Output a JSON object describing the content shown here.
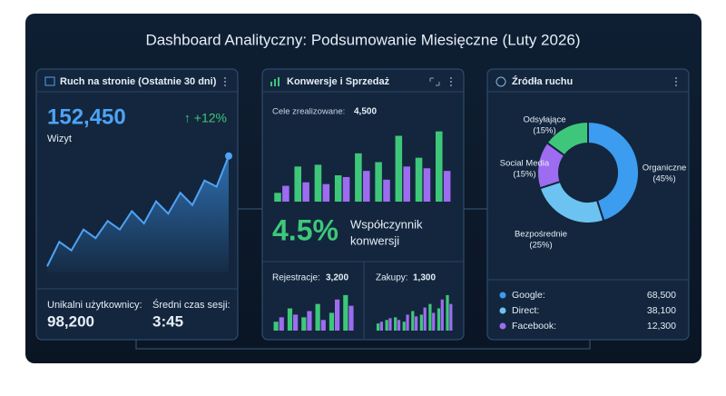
{
  "title": "Dashboard Analityczny: Podsumowanie Miesięczne (Luty 2026)",
  "cards": [
    {
      "title": "Ruch na stronie (Ostatnie 30 dni)",
      "metric": "152,450",
      "metric_label": "Wizyt",
      "change": "↑ +12%",
      "stats": [
        {
          "label": "Unikalni użytkownicy:",
          "value": "98,200"
        },
        {
          "label": "Średni czas sesji:",
          "value": "3:45"
        }
      ]
    },
    {
      "title": "Konwersje i Sprzedaż",
      "goals_label": "Cele zrealizowane:",
      "goals_value": "4,500",
      "rate": "4.5%",
      "rate_label": [
        "Współczynnik",
        "konwersji"
      ],
      "sub": [
        {
          "label": "Rejestracje:",
          "value": "3,200"
        },
        {
          "label": "Zakupy:",
          "value": "1,300"
        }
      ]
    },
    {
      "title": "Źródła ruchu",
      "legend": [
        {
          "label": "Google:",
          "value": "68,500",
          "color": "#3b9cf0"
        },
        {
          "label": "Direct:",
          "value": "38,100",
          "color": "#6cc3f2"
        },
        {
          "label": "Facebook:",
          "value": "12,300",
          "color": "#9d6cf0"
        }
      ]
    }
  ],
  "chart_data": [
    {
      "type": "line",
      "color": "#4ea3f5",
      "values": [
        5,
        25,
        18,
        35,
        28,
        42,
        35,
        50,
        40,
        58,
        48,
        65,
        55,
        75,
        70,
        95
      ],
      "ylim": [
        0,
        100
      ]
    },
    {
      "type": "bar",
      "ylim": [
        0,
        90
      ],
      "series": [
        {
          "color": "#3ec77a",
          "values": [
            10,
            40,
            42,
            30,
            55,
            45,
            75,
            50,
            80
          ]
        },
        {
          "color": "#9d6cf0",
          "values": [
            18,
            22,
            20,
            28,
            35,
            25,
            40,
            38,
            35
          ]
        }
      ]
    },
    {
      "type": "bar",
      "ylim": [
        0,
        45
      ],
      "series": [
        {
          "color": "#3ec77a",
          "values": [
            10,
            25,
            15,
            30,
            20,
            40
          ]
        },
        {
          "color": "#9d6cf0",
          "values": [
            15,
            18,
            22,
            12,
            35,
            28
          ]
        }
      ]
    },
    {
      "type": "bar",
      "ylim": [
        0,
        45
      ],
      "series": [
        {
          "color": "#3ec77a",
          "values": [
            8,
            12,
            15,
            10,
            22,
            18,
            30,
            25,
            40
          ]
        },
        {
          "color": "#9d6cf0",
          "values": [
            10,
            14,
            12,
            18,
            16,
            26,
            20,
            35,
            30
          ]
        }
      ]
    },
    {
      "type": "pie",
      "categories": [
        "Organiczne",
        "Bezpośrednie",
        "Social Media",
        "Odsyłające"
      ],
      "values": [
        45,
        25,
        15,
        15
      ],
      "value_labels": [
        "(45%)",
        "(25%)",
        "(15%)",
        "(15%)"
      ],
      "colors": [
        "#3b9cf0",
        "#6cc3f2",
        "#9d6cf0",
        "#3ec77a"
      ]
    }
  ]
}
